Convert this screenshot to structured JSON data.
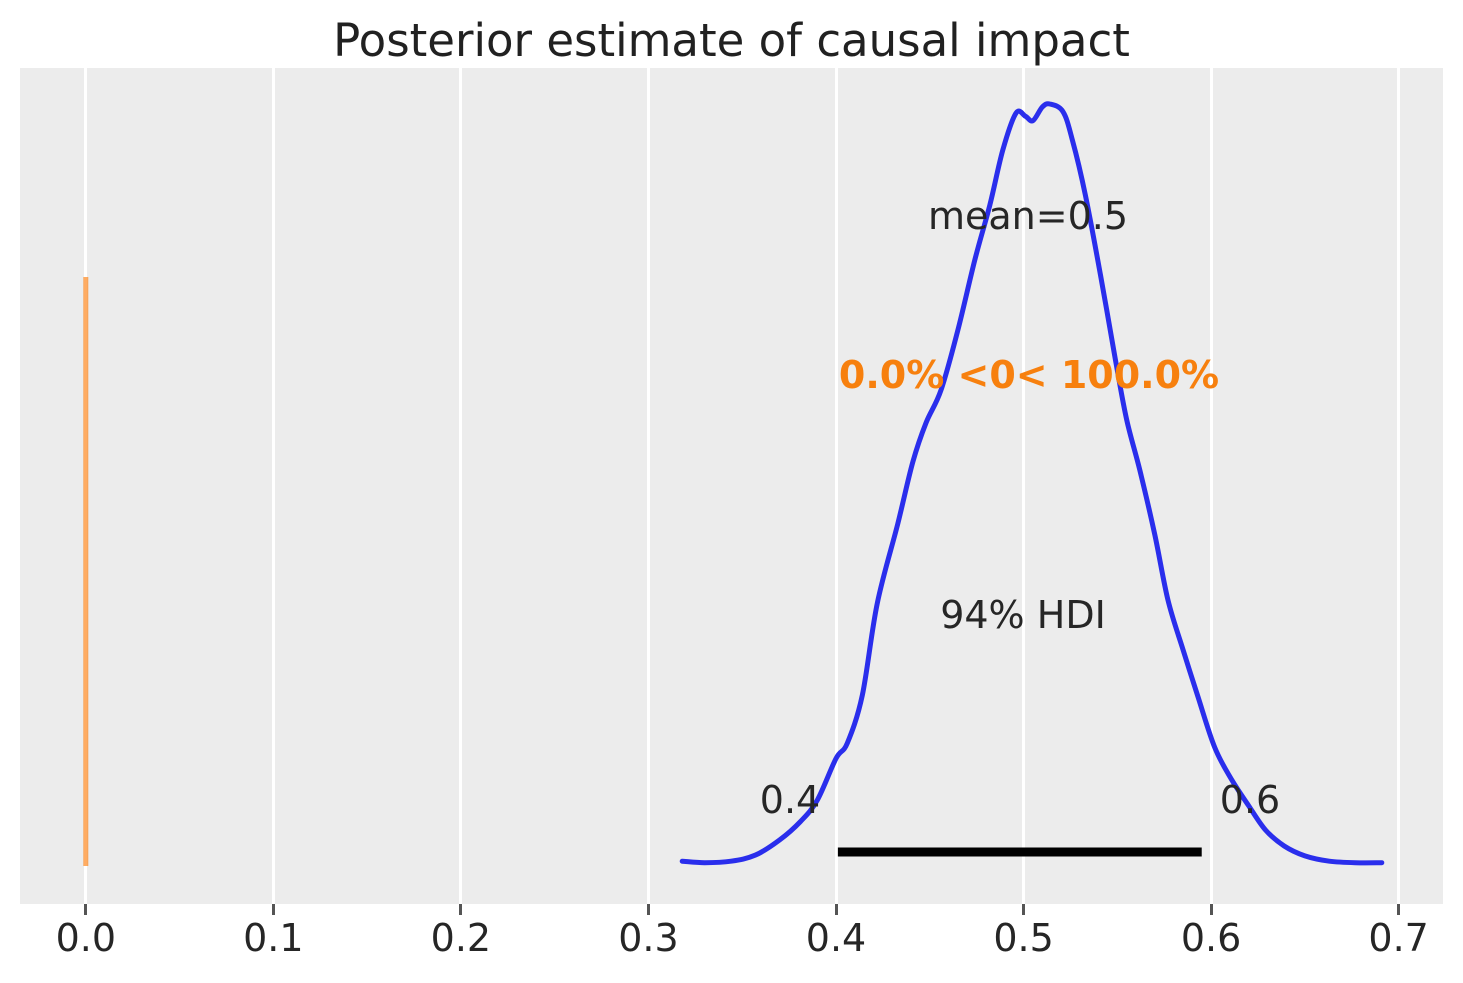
{
  "figure": {
    "title": "Posterior estimate of causal impact",
    "background": "#ffffff",
    "panel_background": "#ececec",
    "gridline_color": "#ffffff",
    "text_color": "#262626"
  },
  "chart_data": {
    "type": "area",
    "subtype": "posterior-kde",
    "title": "Posterior estimate of causal impact",
    "xlabel": "",
    "ylabel": "",
    "xlim": [
      -0.035,
      0.724
    ],
    "grid": "vertical-white-on-gray",
    "x_ticks": [
      "0.0",
      "0.1",
      "0.2",
      "0.3",
      "0.4",
      "0.5",
      "0.6",
      "0.7"
    ],
    "x_tick_values": [
      0.0,
      0.1,
      0.2,
      0.3,
      0.4,
      0.5,
      0.6,
      0.7
    ],
    "curve_color": "#2a2eec",
    "curve_points": [
      [
        0.318,
        0.005
      ],
      [
        0.33,
        0.003
      ],
      [
        0.344,
        0.005
      ],
      [
        0.357,
        0.013
      ],
      [
        0.37,
        0.033
      ],
      [
        0.381,
        0.057
      ],
      [
        0.39,
        0.085
      ],
      [
        0.4,
        0.14
      ],
      [
        0.406,
        0.16
      ],
      [
        0.414,
        0.223
      ],
      [
        0.422,
        0.344
      ],
      [
        0.433,
        0.449
      ],
      [
        0.441,
        0.53
      ],
      [
        0.448,
        0.581
      ],
      [
        0.456,
        0.624
      ],
      [
        0.465,
        0.703
      ],
      [
        0.474,
        0.795
      ],
      [
        0.482,
        0.867
      ],
      [
        0.489,
        0.94
      ],
      [
        0.496,
        0.988
      ],
      [
        0.501,
        0.984
      ],
      [
        0.505,
        0.978
      ],
      [
        0.51,
        0.996
      ],
      [
        0.514,
        1.0
      ],
      [
        0.521,
        0.99
      ],
      [
        0.526,
        0.953
      ],
      [
        0.533,
        0.88
      ],
      [
        0.541,
        0.776
      ],
      [
        0.549,
        0.664
      ],
      [
        0.555,
        0.585
      ],
      [
        0.562,
        0.519
      ],
      [
        0.57,
        0.434
      ],
      [
        0.577,
        0.348
      ],
      [
        0.585,
        0.283
      ],
      [
        0.593,
        0.221
      ],
      [
        0.602,
        0.154
      ],
      [
        0.611,
        0.112
      ],
      [
        0.62,
        0.078
      ],
      [
        0.629,
        0.046
      ],
      [
        0.639,
        0.025
      ],
      [
        0.65,
        0.012
      ],
      [
        0.663,
        0.005
      ],
      [
        0.677,
        0.003
      ],
      [
        0.691,
        0.003
      ]
    ],
    "annotations": {
      "mean_label": "mean=0.5",
      "mean_value": 0.5,
      "ref_label": "0.0% <0< 100.0%",
      "ref_value": 0,
      "ref_line_color": "#ff7f0e",
      "ref_line_alpha": 0.65,
      "ref_text_color": "#f7800e",
      "hdi_label": "94% HDI",
      "hdi_low_label": "0.4",
      "hdi_high_label": "0.6",
      "hdi_interval": [
        0.401,
        0.595
      ],
      "hdi_line_color": "#000000"
    }
  }
}
